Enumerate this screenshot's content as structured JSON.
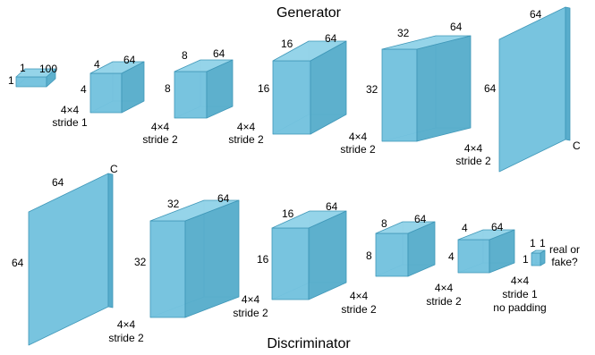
{
  "generator": {
    "title": "Generator",
    "volumes": [
      {
        "id": "g0",
        "width": "1",
        "height": "1",
        "depth": "100"
      },
      {
        "id": "g1",
        "width": "4",
        "height": "4",
        "depth": "64"
      },
      {
        "id": "g2",
        "width": "8",
        "height": "8",
        "depth": "64"
      },
      {
        "id": "g3",
        "width": "16",
        "height": "16",
        "depth": "64"
      },
      {
        "id": "g4",
        "width": "32",
        "height": "32",
        "depth": "64"
      },
      {
        "id": "g5",
        "width": "64",
        "height": "64",
        "depth": "C"
      }
    ],
    "ops": [
      {
        "kernel": "4×4",
        "stride": "stride 1"
      },
      {
        "kernel": "4×4",
        "stride": "stride 2"
      },
      {
        "kernel": "4×4",
        "stride": "stride 2"
      },
      {
        "kernel": "4×4",
        "stride": "stride 2"
      },
      {
        "kernel": "4×4",
        "stride": "stride 2"
      }
    ]
  },
  "discriminator": {
    "title": "Discriminator",
    "volumes": [
      {
        "id": "d0",
        "width": "64",
        "height": "64",
        "depth": "C"
      },
      {
        "id": "d1",
        "width": "32",
        "height": "32",
        "depth": "64"
      },
      {
        "id": "d2",
        "width": "16",
        "height": "16",
        "depth": "64"
      },
      {
        "id": "d3",
        "width": "8",
        "height": "8",
        "depth": "64"
      },
      {
        "id": "d4",
        "width": "4",
        "height": "4",
        "depth": "64"
      },
      {
        "id": "d5",
        "width": "1",
        "height": "1",
        "depth": "1"
      }
    ],
    "ops": [
      {
        "kernel": "4×4",
        "stride": "stride 2",
        "extra": ""
      },
      {
        "kernel": "4×4",
        "stride": "stride 2",
        "extra": ""
      },
      {
        "kernel": "4×4",
        "stride": "stride 2",
        "extra": ""
      },
      {
        "kernel": "4×4",
        "stride": "stride 2",
        "extra": ""
      },
      {
        "kernel": "4×4",
        "stride": "stride 1",
        "extra": "no padding"
      }
    ],
    "output": {
      "line1": "real or",
      "line2": "fake?"
    }
  },
  "colors": {
    "front": "#6cbfdc",
    "top": "#8fd2e8",
    "side": "#4fa9c9",
    "edge": "#3f97b8"
  }
}
